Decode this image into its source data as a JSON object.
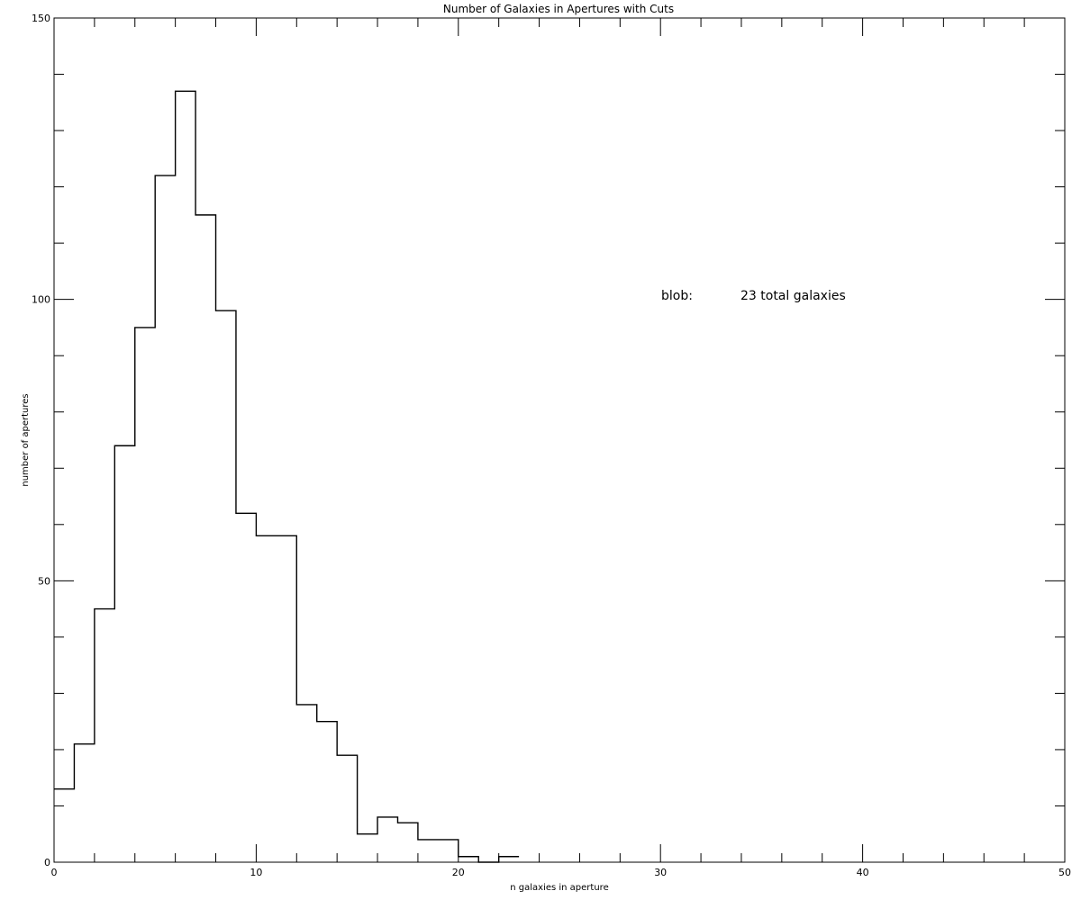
{
  "chart_data": {
    "type": "bar",
    "histogram": true,
    "title": "Number of Galaxies in Apertures with Cuts",
    "xlabel": "n galaxies in aperture",
    "ylabel": "number of apertures",
    "xlim": [
      0,
      50
    ],
    "ylim": [
      0,
      150
    ],
    "xticks": [
      "0",
      "10",
      "20",
      "30",
      "40",
      "50"
    ],
    "yticks": [
      "0",
      "50",
      "100",
      "150"
    ],
    "grid": false,
    "bin_edges": [
      0,
      1,
      2,
      3,
      4,
      5,
      6,
      7,
      8,
      9,
      10,
      11,
      12,
      13,
      14,
      15,
      16,
      17,
      18,
      19,
      20,
      21,
      22,
      23
    ],
    "values": [
      13,
      21,
      45,
      74,
      95,
      122,
      137,
      115,
      98,
      62,
      58,
      58,
      28,
      25,
      19,
      5,
      8,
      7,
      4,
      4,
      1,
      0,
      1
    ],
    "annotation": {
      "label": "blob:",
      "value": "23 total galaxies"
    }
  }
}
